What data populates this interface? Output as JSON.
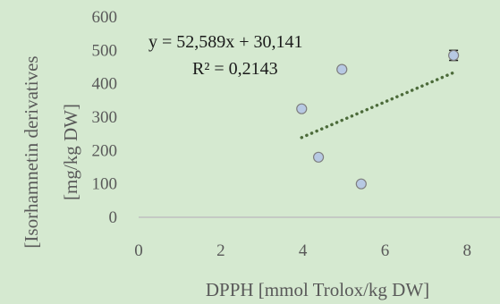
{
  "chart_data": {
    "type": "scatter",
    "xlabel": "DPPH [mmol Trolox/kg DW]",
    "ylabel_line1": "[Isorhamnetin derivatives",
    "ylabel_line2": "[mg/kg DW]",
    "xlim": [
      0,
      8.8
    ],
    "ylim": [
      0,
      600
    ],
    "x_ticks": [
      0,
      2,
      4,
      6,
      8
    ],
    "y_ticks": [
      0,
      100,
      200,
      300,
      400,
      500,
      600
    ],
    "grid": false,
    "legend": "none",
    "points": [
      {
        "x": 3.97,
        "y": 325,
        "err": 0
      },
      {
        "x": 4.95,
        "y": 443,
        "err": 0
      },
      {
        "x": 4.38,
        "y": 180,
        "err": 6
      },
      {
        "x": 5.42,
        "y": 100,
        "err": 0
      },
      {
        "x": 7.67,
        "y": 485,
        "err": 15
      }
    ],
    "trendline": {
      "type": "linear",
      "slope": 52.589,
      "intercept": 30.141,
      "x_range": [
        3.97,
        7.67
      ],
      "equation": "y = 52,589x + 30,141",
      "r_squared": "R² = 0,2143"
    },
    "colors": {
      "background": "#d5e9d0",
      "marker_fill": "#b7c9e3",
      "marker_edge": "#7f7f7f",
      "error_bar": "#1a1a1a",
      "trendline": "#4c6b3a",
      "axis": "#bfbfbf",
      "text": "#595959"
    }
  }
}
